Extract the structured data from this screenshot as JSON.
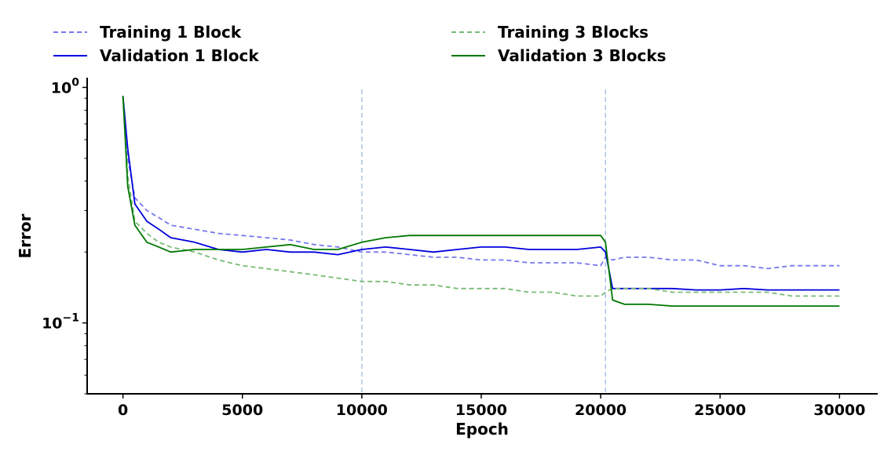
{
  "chart_data": {
    "type": "line",
    "xlabel": "Epoch",
    "ylabel": "Error",
    "xlim": [
      -1500,
      31600
    ],
    "ylim": [
      0.05,
      1.1
    ],
    "yscale": "log",
    "x_ticks": [
      0,
      5000,
      10000,
      15000,
      20000,
      25000,
      30000
    ],
    "x_tick_labels": [
      "0",
      "5000",
      "10000",
      "15000",
      "20000",
      "25000",
      "30000"
    ],
    "y_major_ticks": [
      {
        "value": 0.1,
        "label": "10",
        "exp": "−1"
      },
      {
        "value": 1.0,
        "label": "10",
        "exp": "0"
      }
    ],
    "vlines": [
      10000,
      20200
    ],
    "legend_position": "top",
    "series": [
      {
        "name": "Training 1 Block",
        "color": "#7777ee",
        "style": "dashed",
        "x": [
          0,
          200,
          500,
          1000,
          1500,
          2000,
          3000,
          4000,
          5000,
          6000,
          7000,
          8000,
          9000,
          10000,
          11000,
          12000,
          13000,
          14000,
          15000,
          16000,
          17000,
          18000,
          19000,
          20000,
          20200,
          20500,
          21000,
          22000,
          23000,
          24000,
          25000,
          26000,
          27000,
          28000,
          29000,
          30000
        ],
        "y": [
          0.92,
          0.5,
          0.34,
          0.3,
          0.28,
          0.26,
          0.25,
          0.24,
          0.235,
          0.23,
          0.225,
          0.215,
          0.21,
          0.2,
          0.2,
          0.195,
          0.19,
          0.19,
          0.185,
          0.185,
          0.18,
          0.18,
          0.18,
          0.175,
          0.19,
          0.185,
          0.19,
          0.19,
          0.185,
          0.185,
          0.175,
          0.175,
          0.17,
          0.175,
          0.175,
          0.175
        ]
      },
      {
        "name": "Validation 1 Block",
        "color": "#0000dd",
        "style": "solid",
        "x": [
          0,
          200,
          500,
          1000,
          1500,
          2000,
          3000,
          4000,
          5000,
          6000,
          7000,
          8000,
          9000,
          10000,
          11000,
          12000,
          13000,
          14000,
          15000,
          16000,
          17000,
          18000,
          19000,
          20000,
          20200,
          20500,
          21000,
          22000,
          23000,
          24000,
          25000,
          26000,
          27000,
          28000,
          29000,
          30000
        ],
        "y": [
          0.92,
          0.55,
          0.32,
          0.27,
          0.25,
          0.23,
          0.22,
          0.205,
          0.2,
          0.205,
          0.2,
          0.2,
          0.195,
          0.205,
          0.21,
          0.205,
          0.2,
          0.205,
          0.21,
          0.21,
          0.205,
          0.205,
          0.205,
          0.21,
          0.2,
          0.14,
          0.14,
          0.14,
          0.14,
          0.138,
          0.138,
          0.14,
          0.138,
          0.138,
          0.138,
          0.138
        ]
      },
      {
        "name": "Training 3 Blocks",
        "color": "#77bb77",
        "style": "dashed",
        "x": [
          0,
          200,
          500,
          1000,
          1500,
          2000,
          3000,
          4000,
          5000,
          6000,
          7000,
          8000,
          9000,
          10000,
          11000,
          12000,
          13000,
          14000,
          15000,
          16000,
          17000,
          18000,
          19000,
          20000,
          20200,
          20500,
          21000,
          22000,
          23000,
          24000,
          25000,
          26000,
          27000,
          28000,
          29000,
          30000
        ],
        "y": [
          0.9,
          0.42,
          0.27,
          0.24,
          0.22,
          0.21,
          0.2,
          0.185,
          0.175,
          0.17,
          0.165,
          0.16,
          0.155,
          0.15,
          0.15,
          0.145,
          0.145,
          0.14,
          0.14,
          0.14,
          0.135,
          0.135,
          0.13,
          0.13,
          0.135,
          0.14,
          0.14,
          0.14,
          0.135,
          0.135,
          0.135,
          0.135,
          0.135,
          0.13,
          0.13,
          0.13
        ]
      },
      {
        "name": "Validation 3 Blocks",
        "color": "#007700",
        "style": "solid",
        "x": [
          0,
          200,
          500,
          1000,
          1500,
          2000,
          3000,
          4000,
          5000,
          6000,
          7000,
          8000,
          9000,
          10000,
          11000,
          12000,
          13000,
          14000,
          15000,
          16000,
          17000,
          18000,
          19000,
          20000,
          20200,
          20500,
          21000,
          22000,
          23000,
          24000,
          25000,
          26000,
          27000,
          28000,
          29000,
          30000
        ],
        "y": [
          0.92,
          0.38,
          0.26,
          0.22,
          0.21,
          0.2,
          0.205,
          0.205,
          0.205,
          0.21,
          0.215,
          0.205,
          0.205,
          0.22,
          0.23,
          0.235,
          0.235,
          0.235,
          0.235,
          0.235,
          0.235,
          0.235,
          0.235,
          0.235,
          0.22,
          0.125,
          0.12,
          0.12,
          0.118,
          0.118,
          0.118,
          0.118,
          0.118,
          0.118,
          0.118,
          0.118
        ]
      }
    ]
  }
}
